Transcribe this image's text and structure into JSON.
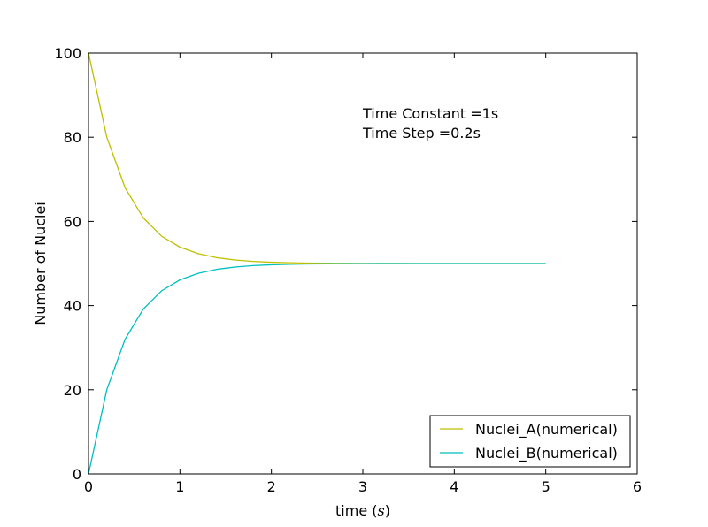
{
  "chart_data": {
    "type": "line",
    "xlabel_text": "time ",
    "xlabel_math": "s",
    "ylabel": "Number of Nuclei",
    "xlim": [
      0,
      6
    ],
    "ylim": [
      0,
      100
    ],
    "xticks": [
      0,
      1,
      2,
      3,
      4,
      5,
      6
    ],
    "yticks": [
      0,
      20,
      40,
      60,
      80,
      100
    ],
    "grid": false,
    "legend_position": "lower-right",
    "annotations": [
      "Time Constant =1s",
      "Time Step =0.2s"
    ],
    "x": [
      0,
      0.2,
      0.4,
      0.6,
      0.8,
      1.0,
      1.2,
      1.4,
      1.6,
      1.8,
      2.0,
      2.2,
      2.4,
      2.6,
      2.8,
      3.0,
      3.2,
      3.4,
      3.6,
      3.8,
      4.0,
      4.2,
      4.4,
      4.6,
      4.8,
      5.0
    ],
    "series": [
      {
        "name": "Nuclei_A(numerical)",
        "color": "#bfbf00",
        "values": [
          100,
          80,
          68,
          60.8,
          56.48,
          53.89,
          52.33,
          51.4,
          50.84,
          50.5,
          50.3,
          50.18,
          50.11,
          50.07,
          50.04,
          50.02,
          50.01,
          50.01,
          50,
          50,
          50,
          50,
          50,
          50,
          50,
          50
        ]
      },
      {
        "name": "Nuclei_B(numerical)",
        "color": "#00bfbf",
        "values": [
          0,
          20,
          32,
          39.2,
          43.52,
          46.11,
          47.67,
          48.6,
          49.16,
          49.5,
          49.7,
          49.82,
          49.89,
          49.93,
          49.96,
          49.98,
          49.99,
          49.99,
          50,
          50,
          50,
          50,
          50,
          50,
          50,
          50
        ]
      }
    ]
  }
}
